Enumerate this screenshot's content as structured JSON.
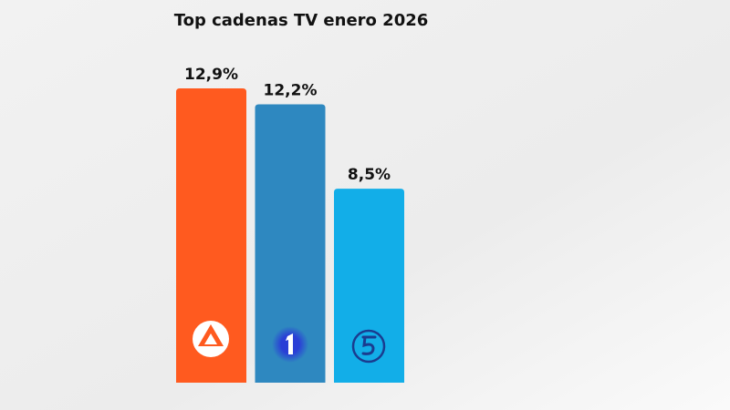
{
  "chart_data": {
    "type": "bar",
    "title": "Top cadenas TV enero 2026",
    "categories": [
      null,
      null,
      null
    ],
    "values": [
      12.9,
      12.2,
      8.5
    ],
    "value_labels": [
      "12,9%",
      "12,2%",
      "8,5%"
    ],
    "colors": [
      "#ff5a1f",
      "#2e88c0",
      "#12aee8"
    ]
  }
}
